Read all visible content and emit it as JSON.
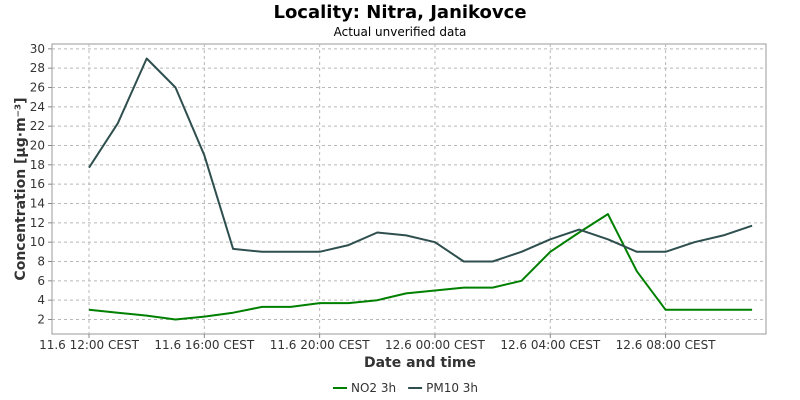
{
  "chart_data": {
    "type": "line",
    "title": "Locality: Nitra, Janikovce",
    "subtitle": "Actual unverified data",
    "xlabel": "Date and time",
    "ylabel": "Concentration [μg·m⁻³]",
    "ylim": [
      0.5,
      30.5
    ],
    "y_ticks": [
      2,
      4,
      6,
      8,
      10,
      12,
      14,
      16,
      18,
      20,
      22,
      24,
      26,
      28,
      30
    ],
    "x_tick_labels": [
      "11.6 12:00 CEST",
      "11.6 16:00 CEST",
      "11.6 20:00 CEST",
      "12.6 00:00 CEST",
      "12.6 04:00 CEST",
      "12.6 08:00 CEST"
    ],
    "x": [
      "11.6 12:00",
      "11.6 13:00",
      "11.6 14:00",
      "11.6 15:00",
      "11.6 16:00",
      "11.6 17:00",
      "11.6 18:00",
      "11.6 19:00",
      "11.6 20:00",
      "11.6 21:00",
      "11.6 22:00",
      "11.6 23:00",
      "12.6 00:00",
      "12.6 01:00",
      "12.6 02:00",
      "12.6 03:00",
      "12.6 04:00",
      "12.6 05:00",
      "12.6 06:00",
      "12.6 07:00",
      "12.6 08:00",
      "12.6 09:00",
      "12.6 10:00",
      "12.6 11:00"
    ],
    "grid": true,
    "legend_position": "bottom",
    "series": [
      {
        "name": "NO2 3h",
        "color": "#008000",
        "values": [
          3.0,
          2.7,
          2.4,
          2.0,
          2.3,
          2.7,
          3.3,
          3.3,
          3.7,
          3.7,
          4.0,
          4.7,
          5.0,
          5.3,
          5.3,
          6.0,
          9.0,
          11.0,
          12.9,
          7.0,
          3.0,
          3.0,
          3.0,
          3.0
        ]
      },
      {
        "name": "PM10 3h",
        "color": "#2f4f4f",
        "values": [
          17.7,
          22.3,
          29.0,
          26.0,
          19.0,
          9.3,
          9.0,
          9.0,
          9.0,
          9.7,
          11.0,
          10.7,
          10.0,
          8.0,
          8.0,
          9.0,
          10.3,
          11.3,
          10.3,
          9.0,
          9.0,
          10.0,
          10.7,
          11.7
        ]
      }
    ]
  }
}
